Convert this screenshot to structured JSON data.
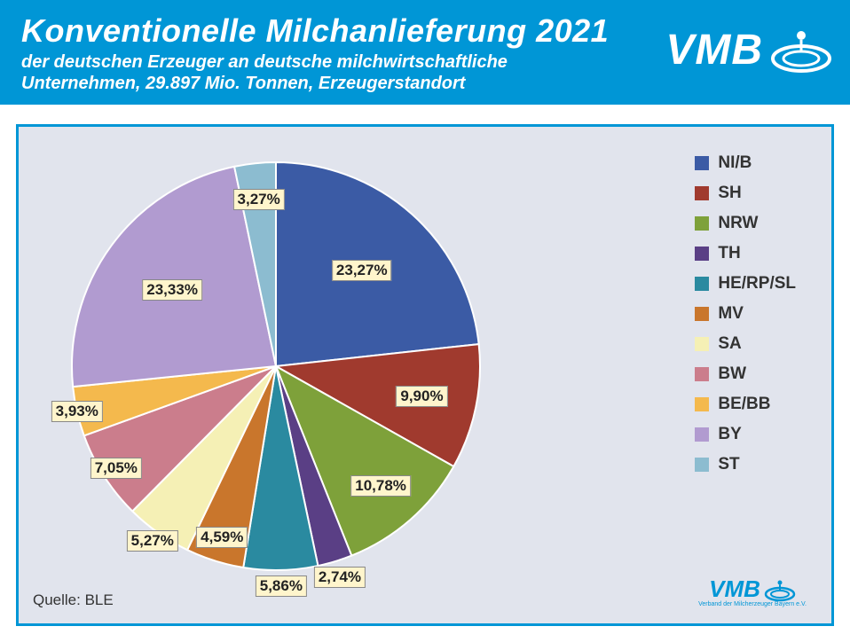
{
  "header": {
    "title": "Konventionelle Milchanlieferung 2021",
    "subtitle": "der deutschen Erzeuger an deutsche milchwirtschaftliche Unternehmen, 29.897 Mio. Tonnen, Erzeugerstandort",
    "logo_text": "VMB",
    "background_color": "#0096d6",
    "text_color": "#ffffff",
    "title_fontsize": 36,
    "subtitle_fontsize": 20
  },
  "chart": {
    "type": "pie",
    "panel_background": "#e1e4ed",
    "panel_border_color": "#0096d6",
    "panel_border_width": 3,
    "start_angle_deg": -90,
    "direction": "clockwise",
    "label_background": "#fff5cc",
    "label_border_color": "#888888",
    "label_fontsize": 17,
    "label_fontweight": "bold",
    "legend_fontsize": 19,
    "legend_fontweight": "bold",
    "slices": [
      {
        "key": "NI/B",
        "value": 23.27,
        "label": "23,27%",
        "color": "#3b5ba5",
        "label_r": 0.63
      },
      {
        "key": "SH",
        "value": 9.9,
        "label": "9,90%",
        "color": "#a03a2e",
        "label_r": 0.73
      },
      {
        "key": "NRW",
        "value": 10.78,
        "label": "10,78%",
        "color": "#7ea13a",
        "label_r": 0.78
      },
      {
        "key": "TH",
        "value": 2.74,
        "label": "2,74%",
        "color": "#5a3f85",
        "label_r": 1.08
      },
      {
        "key": "HE/RP/SL",
        "value": 5.86,
        "label": "5,86%",
        "color": "#2a8aa0",
        "label_r": 1.08
      },
      {
        "key": "MV",
        "value": 4.59,
        "label": "4,59%",
        "color": "#c9762c",
        "label_r": 0.88
      },
      {
        "key": "SA",
        "value": 5.27,
        "label": "5,27%",
        "color": "#f5f0b5",
        "label_r": 1.05
      },
      {
        "key": "BW",
        "value": 7.05,
        "label": "7,05%",
        "color": "#cb7d8c",
        "label_r": 0.93
      },
      {
        "key": "BE/BB",
        "value": 3.93,
        "label": "3,93%",
        "color": "#f4b94d",
        "label_r": 1.0
      },
      {
        "key": "BY",
        "value": 23.33,
        "label": "23,33%",
        "color": "#b19bd0",
        "label_r": 0.63
      },
      {
        "key": "ST",
        "value": 3.27,
        "label": "3,27%",
        "color": "#8cbcd0",
        "label_r": 0.82
      }
    ]
  },
  "source": {
    "prefix": "Quelle: ",
    "value": "BLE"
  },
  "footer_logo": {
    "text": "VMB",
    "tagline": "Verband der Milcherzeuger Bayern e.V.",
    "color": "#0096d6"
  }
}
